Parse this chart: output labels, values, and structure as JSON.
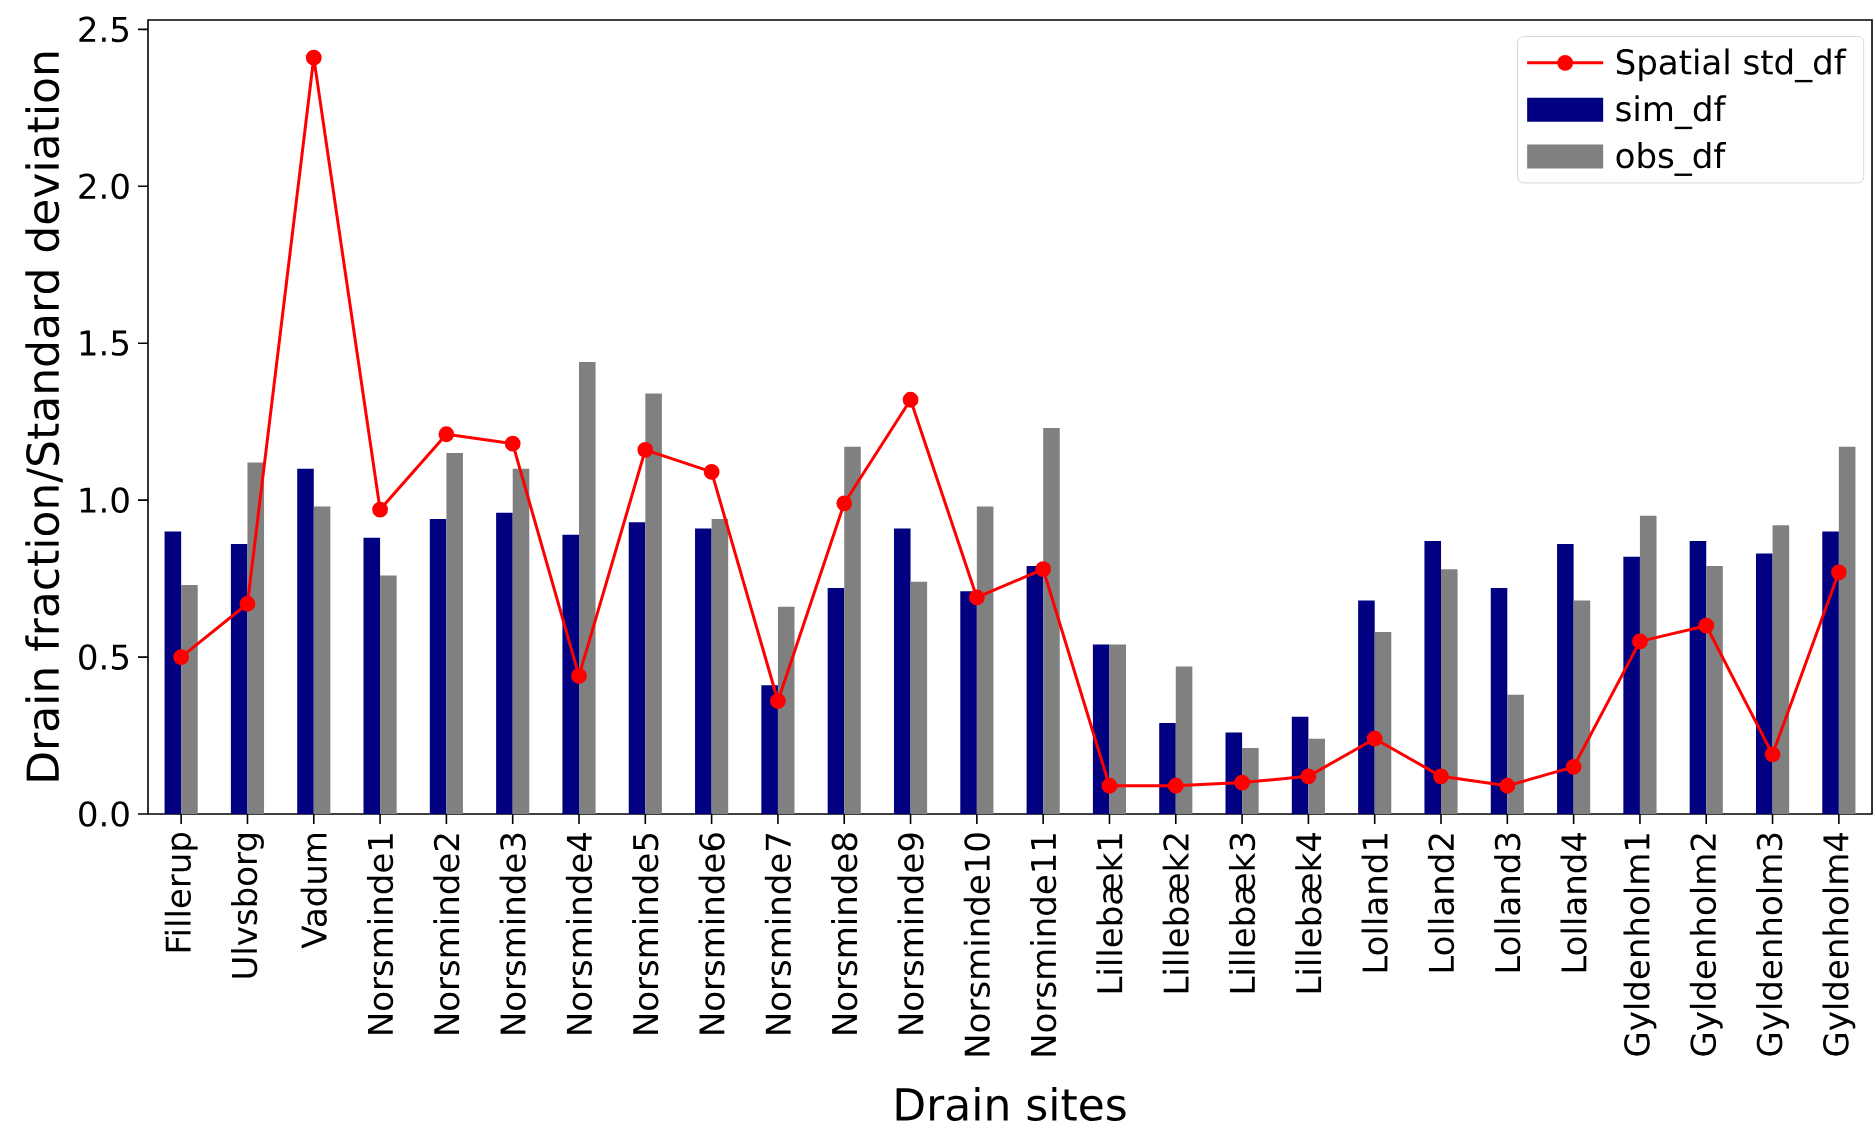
{
  "chart_data": {
    "type": "bar",
    "xlabel": "Drain sites",
    "ylabel": "Drain fraction/Standard deviation",
    "categories": [
      "Fillerup",
      "Ulvsborg",
      "Vadum",
      "Norsminde1",
      "Norsminde2",
      "Norsminde3",
      "Norsminde4",
      "Norsminde5",
      "Norsminde6",
      "Norsminde7",
      "Norsminde8",
      "Norsminde9",
      "Norsminde10",
      "Norsminde11",
      "Lillebæk1",
      "Lillebæk2",
      "Lillebæk3",
      "Lillebæk4",
      "Lolland1",
      "Lolland2",
      "Lolland3",
      "Lolland4",
      "Gyldenholm1",
      "Gyldenholm2",
      "Gyldenholm3",
      "Gyldenholm4"
    ],
    "series": [
      {
        "name": "Spatial std_df",
        "type": "line",
        "color": "#ff0000",
        "values": [
          0.5,
          0.67,
          2.41,
          0.97,
          1.21,
          1.18,
          0.44,
          1.16,
          1.09,
          0.36,
          0.99,
          1.32,
          0.69,
          0.78,
          0.09,
          0.09,
          0.1,
          0.12,
          0.24,
          0.12,
          0.09,
          0.15,
          0.55,
          0.6,
          0.19,
          0.77
        ]
      },
      {
        "name": "sim_df",
        "color": "#000080",
        "values": [
          0.9,
          0.86,
          1.1,
          0.88,
          0.94,
          0.96,
          0.89,
          0.93,
          0.91,
          0.41,
          0.72,
          0.91,
          0.71,
          0.79,
          0.54,
          0.29,
          0.26,
          0.31,
          0.68,
          0.87,
          0.72,
          0.86,
          0.82,
          0.87,
          0.83,
          0.9
        ]
      },
      {
        "name": "obs_df",
        "color": "#808080",
        "values": [
          0.73,
          1.12,
          0.98,
          0.76,
          1.15,
          1.1,
          1.44,
          1.34,
          0.94,
          0.66,
          1.17,
          0.74,
          0.98,
          1.23,
          0.54,
          0.47,
          0.21,
          0.24,
          0.58,
          0.78,
          0.38,
          0.68,
          0.95,
          0.79,
          0.92,
          1.17
        ]
      }
    ],
    "ylim": [
      0,
      2.53
    ],
    "yticks": [
      {
        "value": 0,
        "label": "0.0"
      },
      0.5,
      {
        "value": 1,
        "label": "1.0"
      },
      1.5,
      {
        "value": 2,
        "label": "2.0"
      },
      2.5
    ],
    "legend": "top right",
    "marker": "circle"
  }
}
